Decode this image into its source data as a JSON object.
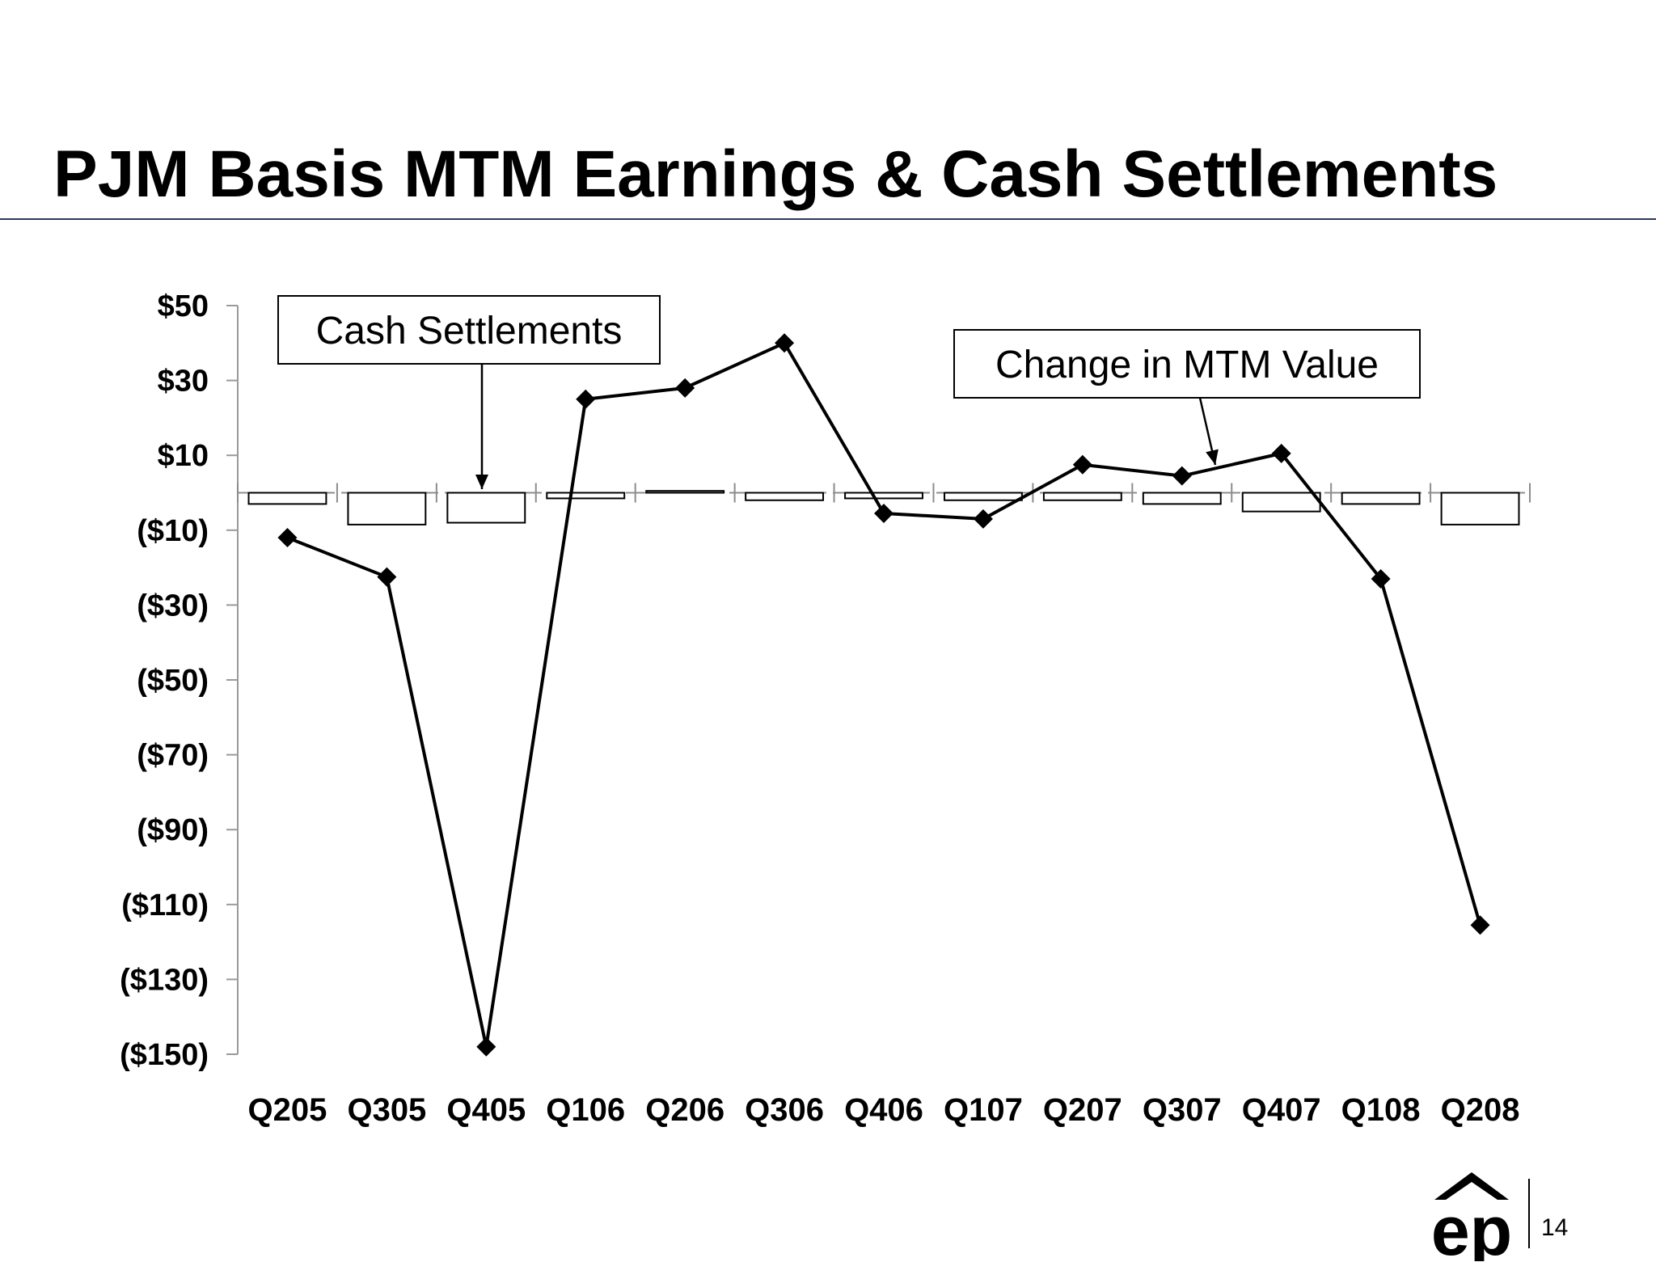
{
  "slide": {
    "title": "PJM Basis MTM Earnings & Cash Settlements",
    "page_number": "14",
    "logo_text": "ep"
  },
  "chart_data": {
    "type": "bar+line",
    "categories": [
      "Q205",
      "Q305",
      "Q405",
      "Q106",
      "Q206",
      "Q306",
      "Q406",
      "Q107",
      "Q207",
      "Q307",
      "Q407",
      "Q108",
      "Q208"
    ],
    "series": [
      {
        "kind": "bar",
        "values": [
          -3,
          -8.5,
          -8,
          -1.5,
          0.5,
          -2,
          -1.5,
          -2,
          -2,
          -3,
          -5,
          -3,
          -8.5
        ]
      },
      {
        "kind": "line",
        "values": [
          -12,
          -22.5,
          -148,
          25,
          28,
          40,
          -5.5,
          -7,
          7.5,
          4.5,
          10.5,
          -23,
          -115.5
        ]
      }
    ],
    "ylim": [
      -150,
      50
    ],
    "yticks": [
      50,
      30,
      10,
      -10,
      -30,
      -50,
      -70,
      -90,
      -110,
      -130,
      -150
    ],
    "ytick_labels": [
      "$50",
      "$30",
      "$10",
      "($10)",
      "($30)",
      "($50)",
      "($70)",
      "($90)",
      "($110)",
      "($130)",
      "($150)"
    ],
    "annotations": [
      "Cash Settlements",
      "Change in MTM Value"
    ],
    "colors": {
      "line": "#000000",
      "bar_fill": "#ffffff",
      "bar_stroke": "#000000",
      "zero_line": "#8c8c8c",
      "title_rule": "#2b3a63"
    }
  }
}
